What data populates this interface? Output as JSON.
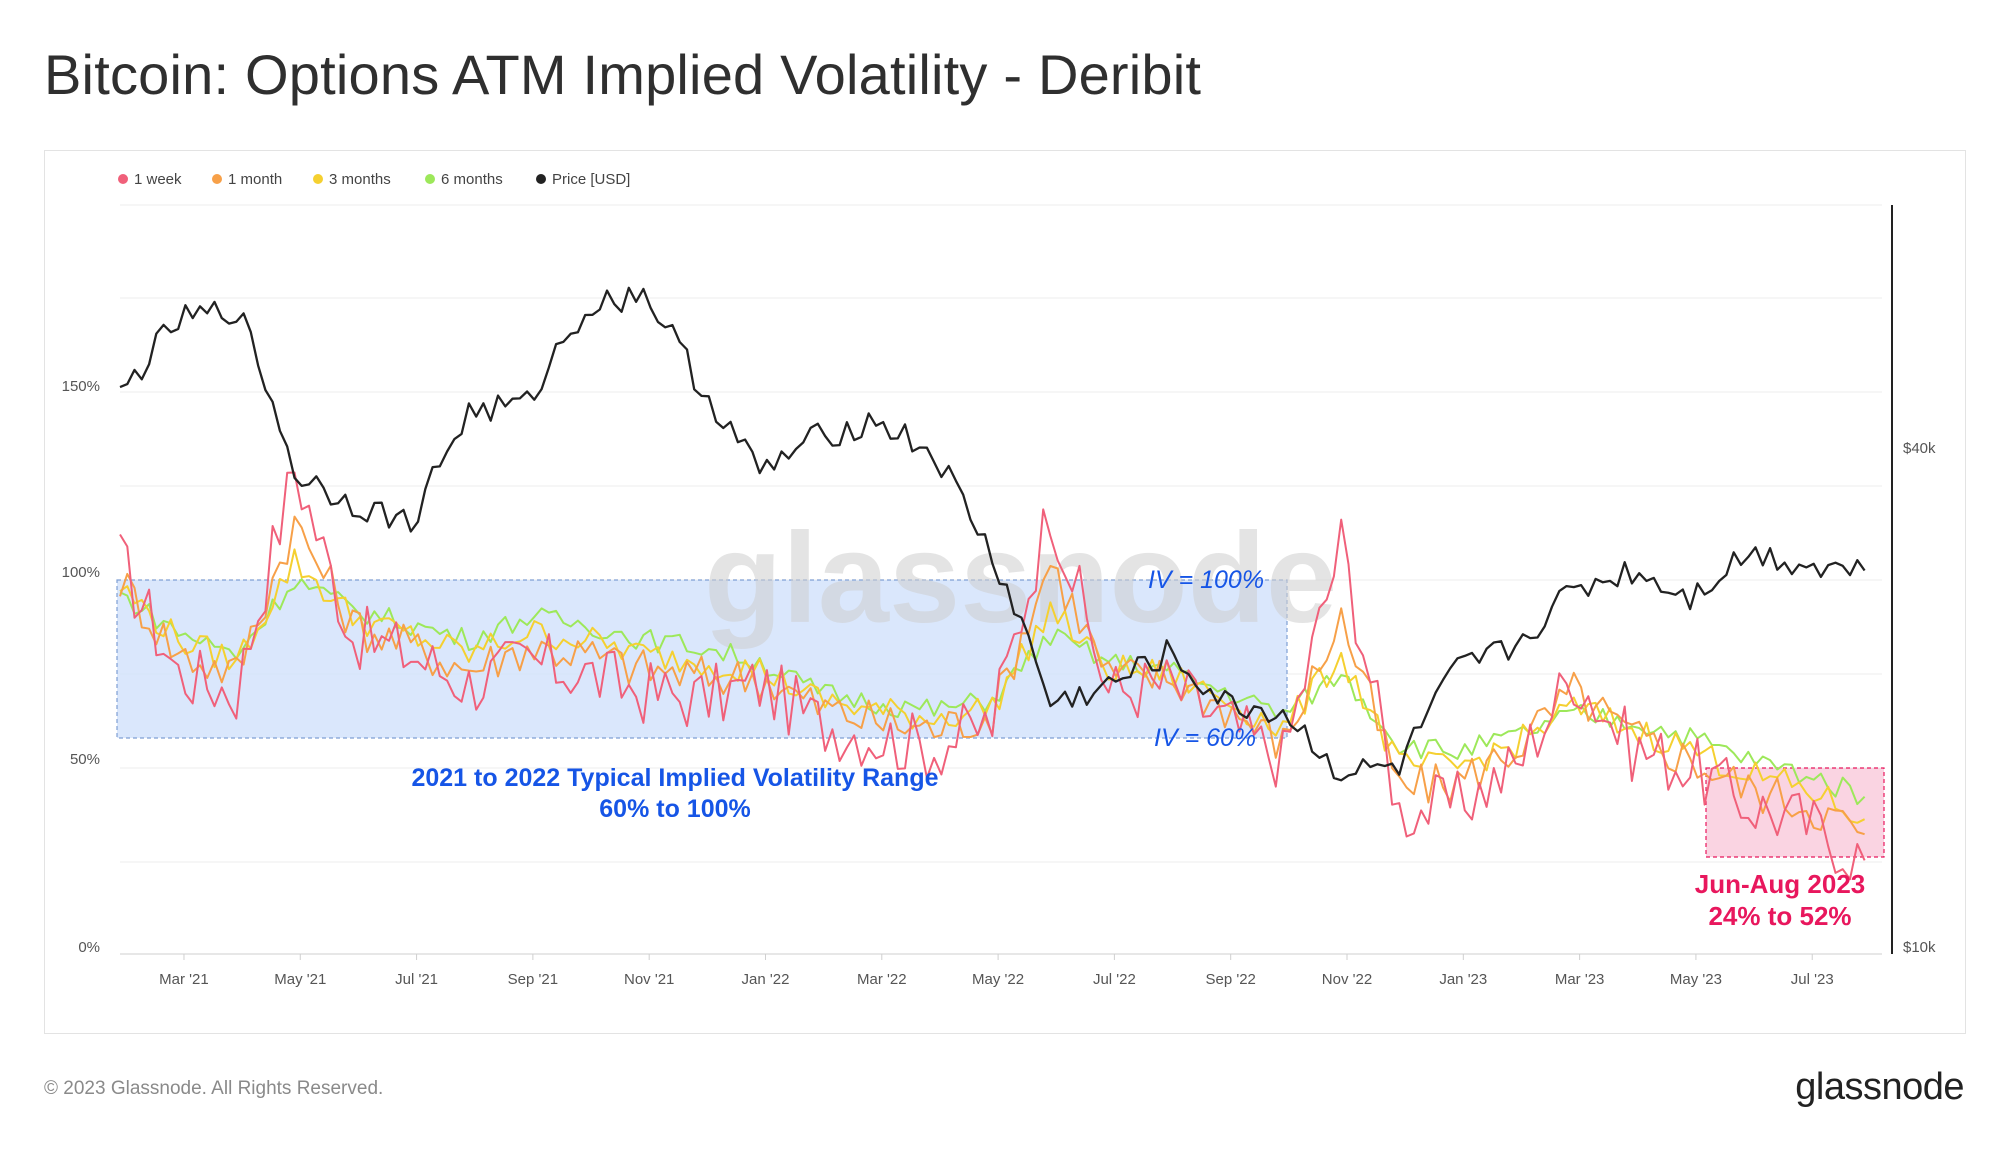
{
  "title": "Bitcoin: Options ATM Implied Volatility - Deribit",
  "footer": "© 2023 Glassnode. All Rights Reserved.",
  "brand": "glassnode",
  "watermark": "glassnode",
  "colors": {
    "w1": "#f0607a",
    "m1": "#f7a048",
    "m3": "#f5d030",
    "m6": "#9de85a",
    "price": "#222222",
    "band_blue_fill": "#d4e3fb",
    "band_blue_stroke": "#7f9fd4",
    "band_pink_fill": "#f9cddd",
    "band_pink_stroke": "#e8175d",
    "annotation_blue": "#1655e6",
    "annotation_pink": "#e8175d"
  },
  "chart_data": {
    "type": "line",
    "title": "Bitcoin: Options ATM Implied Volatility - Deribit",
    "legend_position": "top-left",
    "grid": true,
    "x_ticks": [
      "Mar '21",
      "May '21",
      "Jul '21",
      "Sep '21",
      "Nov '21",
      "Jan '22",
      "Mar '22",
      "May '22",
      "Jul '22",
      "Sep '22",
      "Nov '22",
      "Jan '23",
      "Mar '23",
      "May '23",
      "Jul '23"
    ],
    "y_left": {
      "ticks": [
        "0%",
        "50%",
        "100%",
        "150%"
      ],
      "range": [
        0,
        200
      ]
    },
    "y_right": {
      "ticks": [
        "$10k",
        "$40k"
      ],
      "scale": "log",
      "range": [
        10000,
        80000
      ]
    },
    "series": [
      {
        "name": "1 week",
        "color": "#f0607a",
        "axis": "left",
        "x": [
          "2021-02",
          "2021-03",
          "2021-04",
          "2021-05",
          "2021-06",
          "2021-07",
          "2021-08",
          "2021-09",
          "2021-10",
          "2021-11",
          "2021-12",
          "2022-01",
          "2022-02",
          "2022-03",
          "2022-04",
          "2022-05",
          "2022-06",
          "2022-07",
          "2022-08",
          "2022-09",
          "2022-10",
          "2022-11",
          "2022-12",
          "2023-01",
          "2023-02",
          "2023-03",
          "2023-04",
          "2023-05",
          "2023-06",
          "2023-07",
          "2023-08"
        ],
        "values": [
          105,
          75,
          70,
          130,
          85,
          80,
          72,
          78,
          75,
          70,
          68,
          72,
          62,
          58,
          55,
          62,
          120,
          70,
          72,
          62,
          52,
          110,
          38,
          40,
          50,
          75,
          55,
          50,
          40,
          35,
          25
        ]
      },
      {
        "name": "1 month",
        "color": "#f7a048",
        "axis": "left",
        "x": [
          "2021-02",
          "2021-03",
          "2021-04",
          "2021-05",
          "2021-06",
          "2021-07",
          "2021-08",
          "2021-09",
          "2021-10",
          "2021-11",
          "2021-12",
          "2022-01",
          "2022-02",
          "2022-03",
          "2022-04",
          "2022-05",
          "2022-06",
          "2022-07",
          "2022-08",
          "2022-09",
          "2022-10",
          "2022-11",
          "2022-12",
          "2023-01",
          "2023-02",
          "2023-03",
          "2023-04",
          "2023-05",
          "2023-06",
          "2023-07",
          "2023-08"
        ],
        "values": [
          100,
          80,
          75,
          115,
          88,
          82,
          76,
          82,
          80,
          76,
          74,
          74,
          66,
          62,
          60,
          64,
          105,
          74,
          74,
          66,
          56,
          90,
          44,
          46,
          55,
          70,
          58,
          52,
          44,
          40,
          32
        ]
      },
      {
        "name": "3 months",
        "color": "#f5d030",
        "axis": "left",
        "x": [
          "2021-02",
          "2021-03",
          "2021-04",
          "2021-05",
          "2021-06",
          "2021-07",
          "2021-08",
          "2021-09",
          "2021-10",
          "2021-11",
          "2021-12",
          "2022-01",
          "2022-02",
          "2022-03",
          "2022-04",
          "2022-05",
          "2022-06",
          "2022-07",
          "2022-08",
          "2022-09",
          "2022-10",
          "2022-11",
          "2022-12",
          "2023-01",
          "2023-02",
          "2023-03",
          "2023-04",
          "2023-05",
          "2023-06",
          "2023-07",
          "2023-08"
        ],
        "values": [
          98,
          84,
          78,
          105,
          90,
          85,
          80,
          86,
          84,
          80,
          78,
          76,
          68,
          65,
          63,
          66,
          92,
          76,
          75,
          68,
          60,
          80,
          50,
          50,
          56,
          66,
          60,
          55,
          48,
          44,
          36
        ]
      },
      {
        "name": "6 months",
        "color": "#9de85a",
        "axis": "left",
        "x": [
          "2021-02",
          "2021-03",
          "2021-04",
          "2021-05",
          "2021-06",
          "2021-07",
          "2021-08",
          "2021-09",
          "2021-10",
          "2021-11",
          "2021-12",
          "2022-01",
          "2022-02",
          "2022-03",
          "2022-04",
          "2022-05",
          "2022-06",
          "2022-07",
          "2022-08",
          "2022-09",
          "2022-10",
          "2022-11",
          "2022-12",
          "2023-01",
          "2023-02",
          "2023-03",
          "2023-04",
          "2023-05",
          "2023-06",
          "2023-07",
          "2023-08"
        ],
        "values": [
          96,
          86,
          80,
          100,
          92,
          88,
          84,
          90,
          88,
          84,
          82,
          78,
          70,
          67,
          65,
          68,
          85,
          78,
          76,
          70,
          64,
          75,
          56,
          54,
          58,
          64,
          62,
          58,
          52,
          48,
          42
        ]
      },
      {
        "name": "Price [USD]",
        "color": "#222222",
        "axis": "right",
        "x": [
          "2021-02",
          "2021-03",
          "2021-04",
          "2021-05",
          "2021-06",
          "2021-07",
          "2021-08",
          "2021-09",
          "2021-10",
          "2021-11",
          "2021-12",
          "2022-01",
          "2022-02",
          "2022-03",
          "2022-04",
          "2022-05",
          "2022-06",
          "2022-07",
          "2022-08",
          "2022-09",
          "2022-10",
          "2022-11",
          "2022-12",
          "2023-01",
          "2023-02",
          "2023-03",
          "2023-04",
          "2023-05",
          "2023-06",
          "2023-07",
          "2023-08"
        ],
        "values": [
          47000,
          58000,
          60000,
          38000,
          35000,
          33000,
          45000,
          46000,
          60000,
          63000,
          48000,
          38000,
          42000,
          44000,
          40000,
          30000,
          20000,
          21000,
          23000,
          20000,
          19500,
          16500,
          16800,
          22000,
          23500,
          27500,
          29000,
          27000,
          30500,
          29500,
          29000
        ]
      }
    ],
    "annotations": {
      "blue_band_title": "2021 to 2022 Typical Implied Volatility Range",
      "blue_band_range": "60% to 100%",
      "iv_top": "IV = 100%",
      "iv_bottom": "IV = 60%",
      "pink_band_title": "Jun-Aug 2023",
      "pink_band_range": "24% to 52%"
    }
  }
}
